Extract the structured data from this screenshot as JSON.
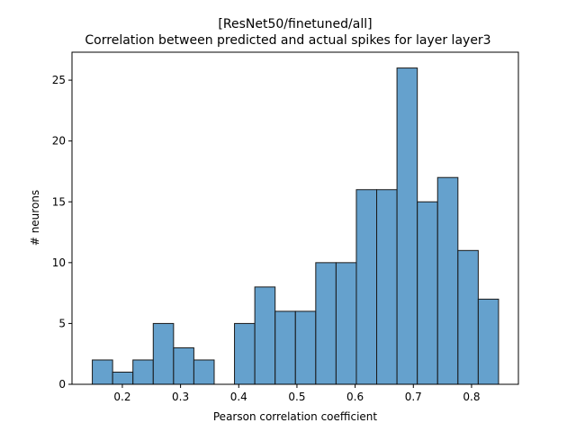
{
  "chart_data": {
    "type": "bar",
    "title_line1": "[ResNet50/finetuned/all]",
    "title_line2": "Correlation between predicted and actual spikes for layer layer3",
    "xlabel": "Pearson correlation coefficient",
    "ylabel": "# neurons",
    "xlim": [
      0.1135,
      0.8805
    ],
    "ylim": [
      0,
      27.3
    ],
    "xticks": [
      0.2,
      0.3,
      0.4,
      0.5,
      0.6,
      0.7,
      0.8
    ],
    "xtick_labels": [
      "0.2",
      "0.3",
      "0.4",
      "0.5",
      "0.6",
      "0.7",
      "0.8"
    ],
    "yticks": [
      0,
      5,
      10,
      15,
      20,
      25
    ],
    "ytick_labels": [
      "0",
      "5",
      "10",
      "15",
      "20",
      "25"
    ],
    "bin_edges": [
      0.1484,
      0.1833,
      0.2182,
      0.2531,
      0.288,
      0.3229,
      0.3578,
      0.3927,
      0.4276,
      0.4625,
      0.4974,
      0.5323,
      0.5672,
      0.6021,
      0.637,
      0.6719,
      0.7068,
      0.7417,
      0.7766,
      0.8115,
      0.8464
    ],
    "counts": [
      2,
      1,
      2,
      5,
      3,
      2,
      0,
      5,
      8,
      6,
      6,
      10,
      10,
      16,
      16,
      26,
      15,
      17,
      11,
      7
    ],
    "bar_color": "#4a90c4",
    "bar_alpha": 0.85,
    "edge_color": "#1a1a1a",
    "grid": false,
    "legend": "none"
  }
}
